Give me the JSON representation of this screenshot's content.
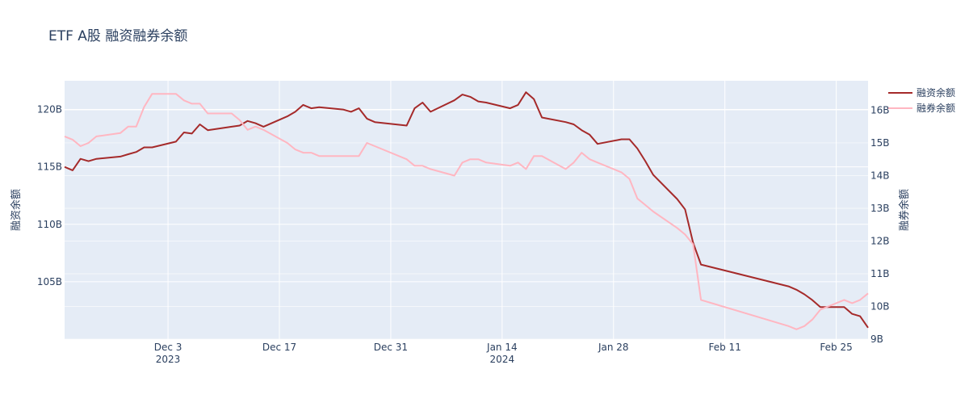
{
  "chart_data": {
    "type": "line",
    "title": "ETF A股 融资融券余额",
    "xlabel": "",
    "ylabel": "融资余额",
    "y2label": "融券余额",
    "xlim": [
      "2023-11-20",
      "2024-02-29"
    ],
    "ylim": [
      100.0,
      122.5
    ],
    "y2lim": [
      9.0,
      16.9
    ],
    "y_ticks": [
      105,
      110,
      115,
      120
    ],
    "y_tick_labels": [
      "105B",
      "110B",
      "115B",
      "120B"
    ],
    "y2_ticks": [
      9,
      10,
      11,
      12,
      13,
      14,
      15,
      16
    ],
    "y2_tick_labels": [
      "9B",
      "10B",
      "11B",
      "12B",
      "13B",
      "14B",
      "15B",
      "16B"
    ],
    "x_ticks": [
      {
        "date": "2023-12-03",
        "label": "Dec 3",
        "sub": "2023"
      },
      {
        "date": "2023-12-17",
        "label": "Dec 17",
        "sub": ""
      },
      {
        "date": "2023-12-31",
        "label": "Dec 31",
        "sub": ""
      },
      {
        "date": "2024-01-14",
        "label": "Jan 14",
        "sub": "2024"
      },
      {
        "date": "2024-01-28",
        "label": "Jan 28",
        "sub": ""
      },
      {
        "date": "2024-02-11",
        "label": "Feb 11",
        "sub": ""
      },
      {
        "date": "2024-02-25",
        "label": "Feb 25",
        "sub": ""
      }
    ],
    "grid": true,
    "legend_position": "top-right",
    "series": [
      {
        "name": "融资余额",
        "axis": "y",
        "color": "#a52a2a",
        "x": [
          "2023-11-20",
          "2023-11-21",
          "2023-11-22",
          "2023-11-23",
          "2023-11-24",
          "2023-11-27",
          "2023-11-28",
          "2023-11-29",
          "2023-11-30",
          "2023-12-01",
          "2023-12-04",
          "2023-12-05",
          "2023-12-06",
          "2023-12-07",
          "2023-12-08",
          "2023-12-11",
          "2023-12-12",
          "2023-12-13",
          "2023-12-14",
          "2023-12-15",
          "2023-12-18",
          "2023-12-19",
          "2023-12-20",
          "2023-12-21",
          "2023-12-22",
          "2023-12-25",
          "2023-12-26",
          "2023-12-27",
          "2023-12-28",
          "2023-12-29",
          "2024-01-02",
          "2024-01-03",
          "2024-01-04",
          "2024-01-05",
          "2024-01-08",
          "2024-01-09",
          "2024-01-10",
          "2024-01-11",
          "2024-01-12",
          "2024-01-15",
          "2024-01-16",
          "2024-01-17",
          "2024-01-18",
          "2024-01-19",
          "2024-01-22",
          "2024-01-23",
          "2024-01-24",
          "2024-01-25",
          "2024-01-26",
          "2024-01-29",
          "2024-01-30",
          "2024-01-31",
          "2024-02-01",
          "2024-02-02",
          "2024-02-05",
          "2024-02-06",
          "2024-02-07",
          "2024-02-08",
          "2024-02-19",
          "2024-02-20",
          "2024-02-21",
          "2024-02-22",
          "2024-02-23",
          "2024-02-26",
          "2024-02-27",
          "2024-02-28",
          "2024-02-29"
        ],
        "values": [
          115.0,
          114.7,
          115.7,
          115.5,
          115.7,
          115.9,
          116.1,
          116.3,
          116.7,
          116.7,
          117.2,
          118.0,
          117.9,
          118.7,
          118.2,
          118.5,
          118.6,
          119.0,
          118.8,
          118.5,
          119.4,
          119.8,
          120.4,
          120.1,
          120.2,
          120.0,
          119.8,
          120.1,
          119.2,
          118.9,
          118.6,
          120.1,
          120.6,
          119.8,
          120.8,
          121.3,
          121.1,
          120.7,
          120.6,
          120.1,
          120.4,
          121.5,
          120.9,
          119.3,
          118.9,
          118.7,
          118.2,
          117.8,
          117.0,
          117.4,
          117.4,
          116.6,
          115.5,
          114.3,
          112.2,
          111.3,
          108.4,
          106.5,
          104.6,
          104.3,
          103.9,
          103.4,
          102.8,
          102.8,
          102.2,
          102.0,
          101.0
        ]
      },
      {
        "name": "融券余额",
        "axis": "y2",
        "color": "#ffb6c1",
        "x": [
          "2023-11-20",
          "2023-11-21",
          "2023-11-22",
          "2023-11-23",
          "2023-11-24",
          "2023-11-27",
          "2023-11-28",
          "2023-11-29",
          "2023-11-30",
          "2023-12-01",
          "2023-12-04",
          "2023-12-05",
          "2023-12-06",
          "2023-12-07",
          "2023-12-08",
          "2023-12-11",
          "2023-12-12",
          "2023-12-13",
          "2023-12-14",
          "2023-12-15",
          "2023-12-18",
          "2023-12-19",
          "2023-12-20",
          "2023-12-21",
          "2023-12-22",
          "2023-12-25",
          "2023-12-26",
          "2023-12-27",
          "2023-12-28",
          "2023-12-29",
          "2024-01-02",
          "2024-01-03",
          "2024-01-04",
          "2024-01-05",
          "2024-01-08",
          "2024-01-09",
          "2024-01-10",
          "2024-01-11",
          "2024-01-12",
          "2024-01-15",
          "2024-01-16",
          "2024-01-17",
          "2024-01-18",
          "2024-01-19",
          "2024-01-22",
          "2024-01-23",
          "2024-01-24",
          "2024-01-25",
          "2024-01-26",
          "2024-01-29",
          "2024-01-30",
          "2024-01-31",
          "2024-02-01",
          "2024-02-02",
          "2024-02-05",
          "2024-02-06",
          "2024-02-07",
          "2024-02-08",
          "2024-02-19",
          "2024-02-20",
          "2024-02-21",
          "2024-02-22",
          "2024-02-23",
          "2024-02-26",
          "2024-02-27",
          "2024-02-28",
          "2024-02-29"
        ],
        "values": [
          15.2,
          15.1,
          14.9,
          15.0,
          15.2,
          15.3,
          15.5,
          15.5,
          16.1,
          16.5,
          16.5,
          16.3,
          16.2,
          16.2,
          15.9,
          15.9,
          15.7,
          15.4,
          15.5,
          15.4,
          15.0,
          14.8,
          14.7,
          14.7,
          14.6,
          14.6,
          14.6,
          14.6,
          15.0,
          14.9,
          14.5,
          14.3,
          14.3,
          14.2,
          14.0,
          14.4,
          14.5,
          14.5,
          14.4,
          14.3,
          14.4,
          14.2,
          14.6,
          14.6,
          14.2,
          14.4,
          14.7,
          14.5,
          14.4,
          14.1,
          13.9,
          13.3,
          13.1,
          12.9,
          12.4,
          12.2,
          11.9,
          10.2,
          9.4,
          9.3,
          9.4,
          9.6,
          9.9,
          10.2,
          10.1,
          10.2,
          10.4
        ]
      }
    ]
  }
}
